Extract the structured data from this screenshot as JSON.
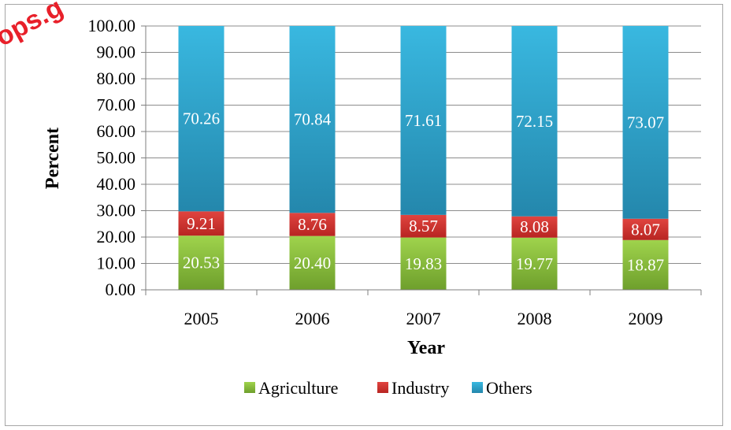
{
  "watermark": "ops.g",
  "chart_data": {
    "type": "bar",
    "stacked": true,
    "categories": [
      "2005",
      "2006",
      "2007",
      "2008",
      "2009"
    ],
    "series": [
      {
        "name": "Agriculture",
        "color": "#8dc63f",
        "values": [
          20.53,
          20.4,
          19.83,
          19.77,
          18.87
        ],
        "labels": [
          "20.53",
          "20.40",
          "19.83",
          "19.77",
          "18.87"
        ]
      },
      {
        "name": "Industry",
        "color": "#d7312e",
        "values": [
          9.21,
          8.76,
          8.57,
          8.08,
          8.07
        ],
        "labels": [
          "9.21",
          "8.76",
          "8.57",
          "8.08",
          "8.07"
        ]
      },
      {
        "name": "Others",
        "color": "#31a9d0",
        "values": [
          70.26,
          70.84,
          71.61,
          72.15,
          73.07
        ],
        "labels": [
          "70.26",
          "70.84",
          "71.61",
          "72.15",
          "73.07"
        ]
      }
    ],
    "xlabel": "Year",
    "ylabel": "Percent",
    "ylim": [
      0,
      100
    ],
    "yticks": [
      "0.00",
      "10.00",
      "20.00",
      "30.00",
      "40.00",
      "50.00",
      "60.00",
      "70.00",
      "80.00",
      "90.00",
      "100.00"
    ],
    "grid": true,
    "legend": "bottom"
  }
}
